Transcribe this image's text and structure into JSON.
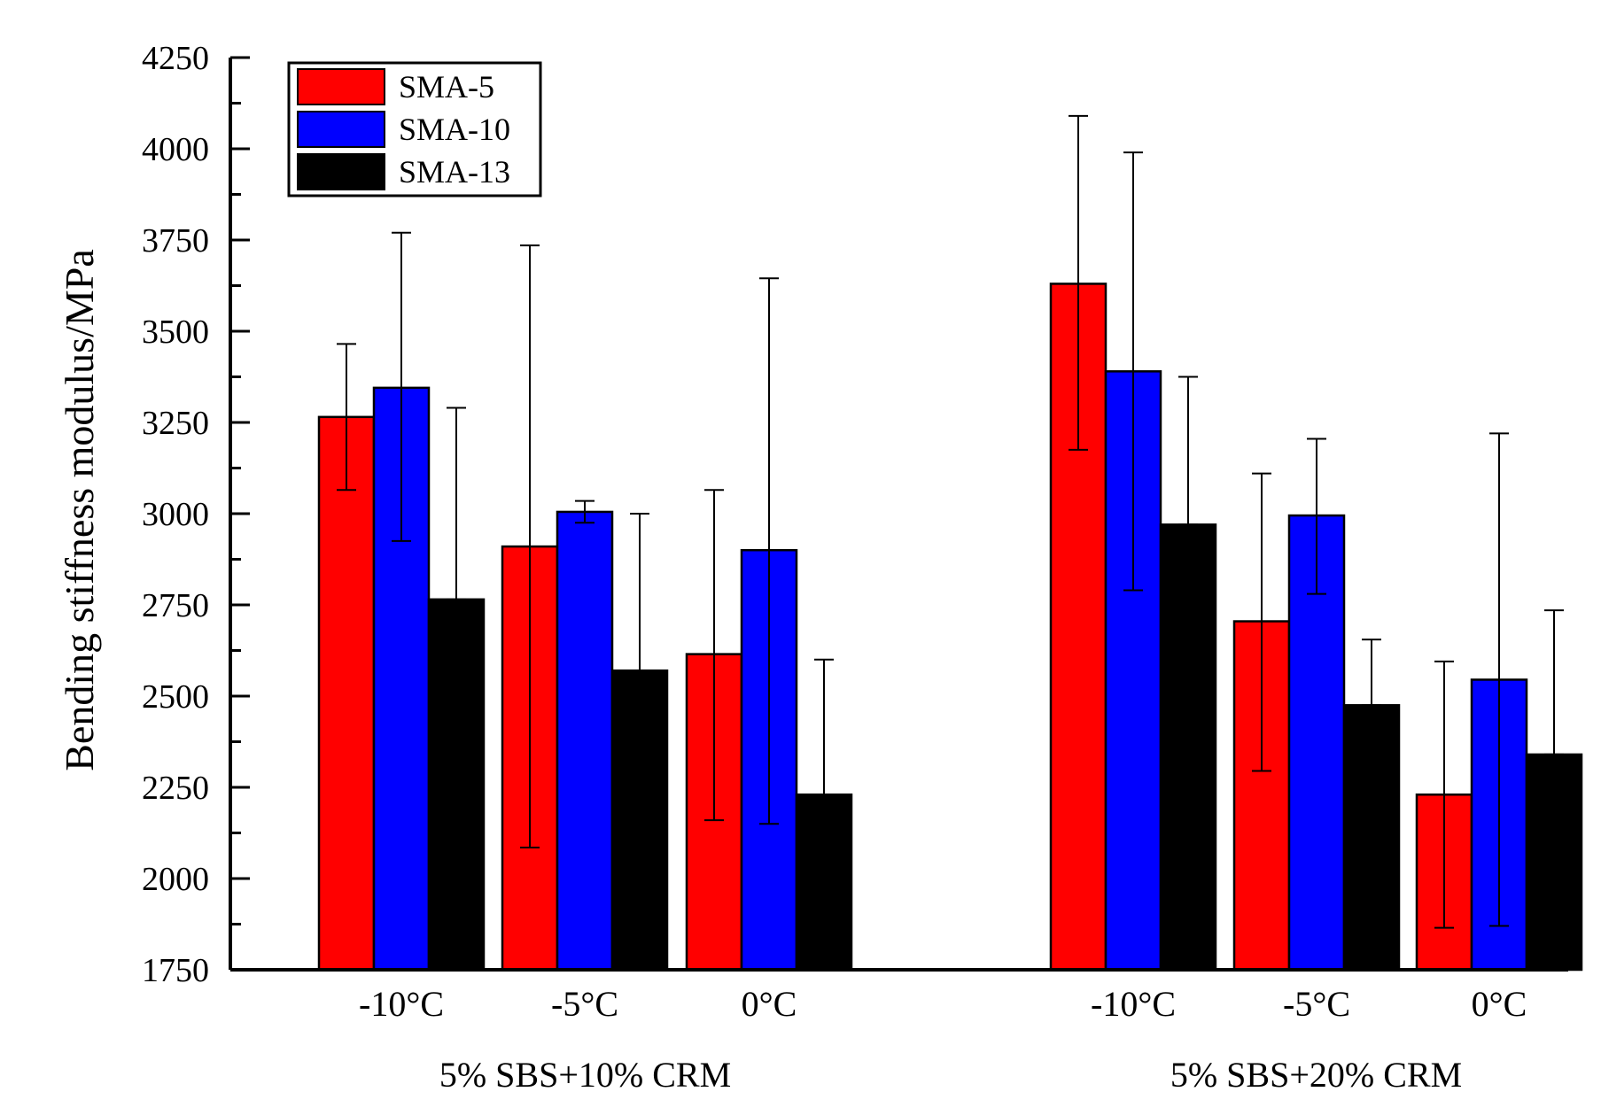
{
  "chart_data": {
    "type": "bar",
    "title": "",
    "xlabel": "",
    "ylabel": "Bending stiffness modulus/MPa",
    "ylim": [
      1750,
      4250
    ],
    "yticks": [
      1750,
      2000,
      2250,
      2500,
      2750,
      3000,
      3250,
      3500,
      3750,
      4000,
      4250
    ],
    "legend_position": "top-left",
    "groups": [
      {
        "name": "5% SBS+10% CRM",
        "categories": [
          "-10°C",
          "-5°C",
          "0°C"
        ]
      },
      {
        "name": "5% SBS+20% CRM",
        "categories": [
          "-10°C",
          "-5°C",
          "0°C"
        ]
      }
    ],
    "series": [
      {
        "name": "SMA-5",
        "color": "#ff0000",
        "values": [
          3265,
          2910,
          2615,
          3630,
          2705,
          2230
        ],
        "err_low": [
          3065,
          2085,
          2160,
          3175,
          2295,
          1865
        ],
        "err_high": [
          3465,
          3735,
          3065,
          4090,
          3110,
          2595
        ]
      },
      {
        "name": "SMA-10",
        "color": "#0000ff",
        "values": [
          3345,
          3005,
          2900,
          3390,
          2995,
          2545
        ],
        "err_low": [
          2925,
          2975,
          2150,
          2790,
          2780,
          1870
        ],
        "err_high": [
          3770,
          3035,
          3645,
          3990,
          3205,
          3220
        ]
      },
      {
        "name": "SMA-13",
        "color": "#000000",
        "values": [
          2765,
          2570,
          2230,
          2970,
          2475,
          2340
        ],
        "err_low": [
          2765,
          2570,
          2230,
          2970,
          2475,
          2340
        ],
        "err_high": [
          3290,
          3000,
          2600,
          3375,
          2655,
          2735
        ]
      }
    ]
  }
}
